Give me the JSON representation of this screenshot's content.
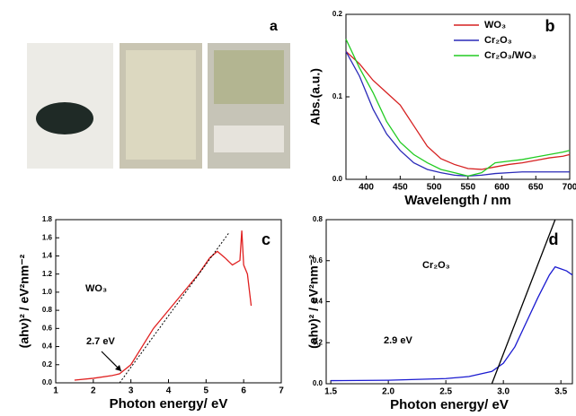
{
  "photo_panel": {
    "label": "a"
  },
  "chart_data": [
    {
      "type": "line",
      "panel_label": "b",
      "xlabel": "Wavelength / nm",
      "ylabel": "Abs.(a.u.)",
      "xlim": [
        370,
        700
      ],
      "ylim": [
        0,
        0.2
      ],
      "xticks": [
        400,
        450,
        500,
        550,
        600,
        650,
        700
      ],
      "yticks": [
        {
          "value": 0,
          "label": "0.0"
        },
        {
          "value": 0.1,
          "label": "0.1"
        },
        {
          "value": 0.2,
          "label": "0.2"
        }
      ],
      "legend": "upper right",
      "series": [
        {
          "name": "WO₃",
          "color": "#d62020",
          "x": [
            370,
            390,
            410,
            430,
            450,
            470,
            490,
            510,
            530,
            550,
            570,
            590,
            610,
            630,
            650,
            670,
            690,
            700
          ],
          "values": [
            0.155,
            0.14,
            0.12,
            0.105,
            0.09,
            0.065,
            0.04,
            0.025,
            0.018,
            0.013,
            0.012,
            0.015,
            0.018,
            0.02,
            0.023,
            0.026,
            0.028,
            0.03
          ]
        },
        {
          "name": "Cr₂O₃",
          "color": "#2a2ab8",
          "x": [
            370,
            390,
            410,
            430,
            450,
            470,
            490,
            510,
            530,
            550,
            570,
            590,
            610,
            630,
            650,
            670,
            690,
            700
          ],
          "values": [
            0.155,
            0.125,
            0.085,
            0.055,
            0.035,
            0.02,
            0.012,
            0.008,
            0.005,
            0.004,
            0.005,
            0.007,
            0.008,
            0.009,
            0.009,
            0.009,
            0.009,
            0.009
          ]
        },
        {
          "name": "Cr₂O₃/WO₃",
          "color": "#22cc22",
          "x": [
            370,
            390,
            410,
            430,
            450,
            470,
            490,
            510,
            530,
            550,
            570,
            590,
            610,
            630,
            650,
            670,
            690,
            700
          ],
          "values": [
            0.17,
            0.135,
            0.105,
            0.07,
            0.045,
            0.03,
            0.02,
            0.012,
            0.008,
            0.004,
            0.008,
            0.02,
            0.022,
            0.024,
            0.027,
            0.03,
            0.033,
            0.035
          ]
        }
      ]
    },
    {
      "type": "line",
      "panel_label": "c",
      "xlabel": "Photon energy/ eV",
      "ylabel": "(ahν)² / eV²nm⁻²",
      "annotations": [
        "WO₃",
        "2.7 eV"
      ],
      "xlim": [
        1,
        7
      ],
      "ylim": [
        0,
        1.8
      ],
      "xticks": [
        1,
        2,
        3,
        4,
        5,
        6,
        7
      ],
      "yticks": [
        {
          "value": 0,
          "label": "0.0"
        },
        {
          "value": 0.2,
          "label": "0.2"
        },
        {
          "value": 0.4,
          "label": "0.4"
        },
        {
          "value": 0.6,
          "label": "0.6"
        },
        {
          "value": 0.8,
          "label": "0.8"
        },
        {
          "value": 1,
          "label": "1.0"
        },
        {
          "value": 1.2,
          "label": "1.2"
        },
        {
          "value": 1.4,
          "label": "1.4"
        },
        {
          "value": 1.6,
          "label": "1.6"
        },
        {
          "value": 1.8,
          "label": "1.8"
        }
      ],
      "series": [
        {
          "color": "#e02020",
          "x": [
            1.5,
            2,
            2.5,
            2.7,
            3,
            3.3,
            3.6,
            4,
            4.4,
            4.8,
            5.1,
            5.3,
            5.5,
            5.7,
            5.9,
            5.95,
            6,
            6.1,
            6.2
          ],
          "values": [
            0.03,
            0.05,
            0.08,
            0.1,
            0.2,
            0.4,
            0.6,
            0.8,
            1.0,
            1.2,
            1.38,
            1.45,
            1.38,
            1.3,
            1.35,
            1.68,
            1.3,
            1.2,
            0.85
          ]
        },
        {
          "color": "#000000",
          "dash": true,
          "x": [
            2.7,
            5.6
          ],
          "values": [
            0,
            1.65
          ]
        }
      ]
    },
    {
      "type": "line",
      "panel_label": "d",
      "xlabel": "Photon energy/ eV",
      "ylabel": "(ahν)² / eV²nm⁻²",
      "annotations": [
        "Cr₂O₃",
        "2.9 eV"
      ],
      "xlim": [
        1.46,
        3.6
      ],
      "ylim": [
        0,
        0.8
      ],
      "xticks": [
        {
          "value": 1.5,
          "label": "1.5"
        },
        {
          "value": 2,
          "label": "2.0"
        },
        {
          "value": 2.5,
          "label": "2.5"
        },
        {
          "value": 3,
          "label": "3.0"
        },
        {
          "value": 3.5,
          "label": "3.5"
        }
      ],
      "yticks": [
        {
          "value": 0,
          "label": "0.0"
        },
        {
          "value": 0.2,
          "label": "0.2"
        },
        {
          "value": 0.4,
          "label": "0.4"
        },
        {
          "value": 0.6,
          "label": "0.6"
        },
        {
          "value": 0.8,
          "label": "0.8"
        }
      ],
      "series": [
        {
          "color": "#1a1ad0",
          "x": [
            1.5,
            2,
            2.5,
            2.7,
            2.9,
            3.0,
            3.1,
            3.2,
            3.3,
            3.4,
            3.45,
            3.5,
            3.55,
            3.6
          ],
          "values": [
            0.015,
            0.017,
            0.025,
            0.035,
            0.06,
            0.1,
            0.18,
            0.3,
            0.42,
            0.53,
            0.57,
            0.56,
            0.55,
            0.53
          ]
        },
        {
          "color": "#000000",
          "x": [
            2.9,
            3.45
          ],
          "values": [
            0,
            0.8
          ]
        }
      ]
    }
  ]
}
